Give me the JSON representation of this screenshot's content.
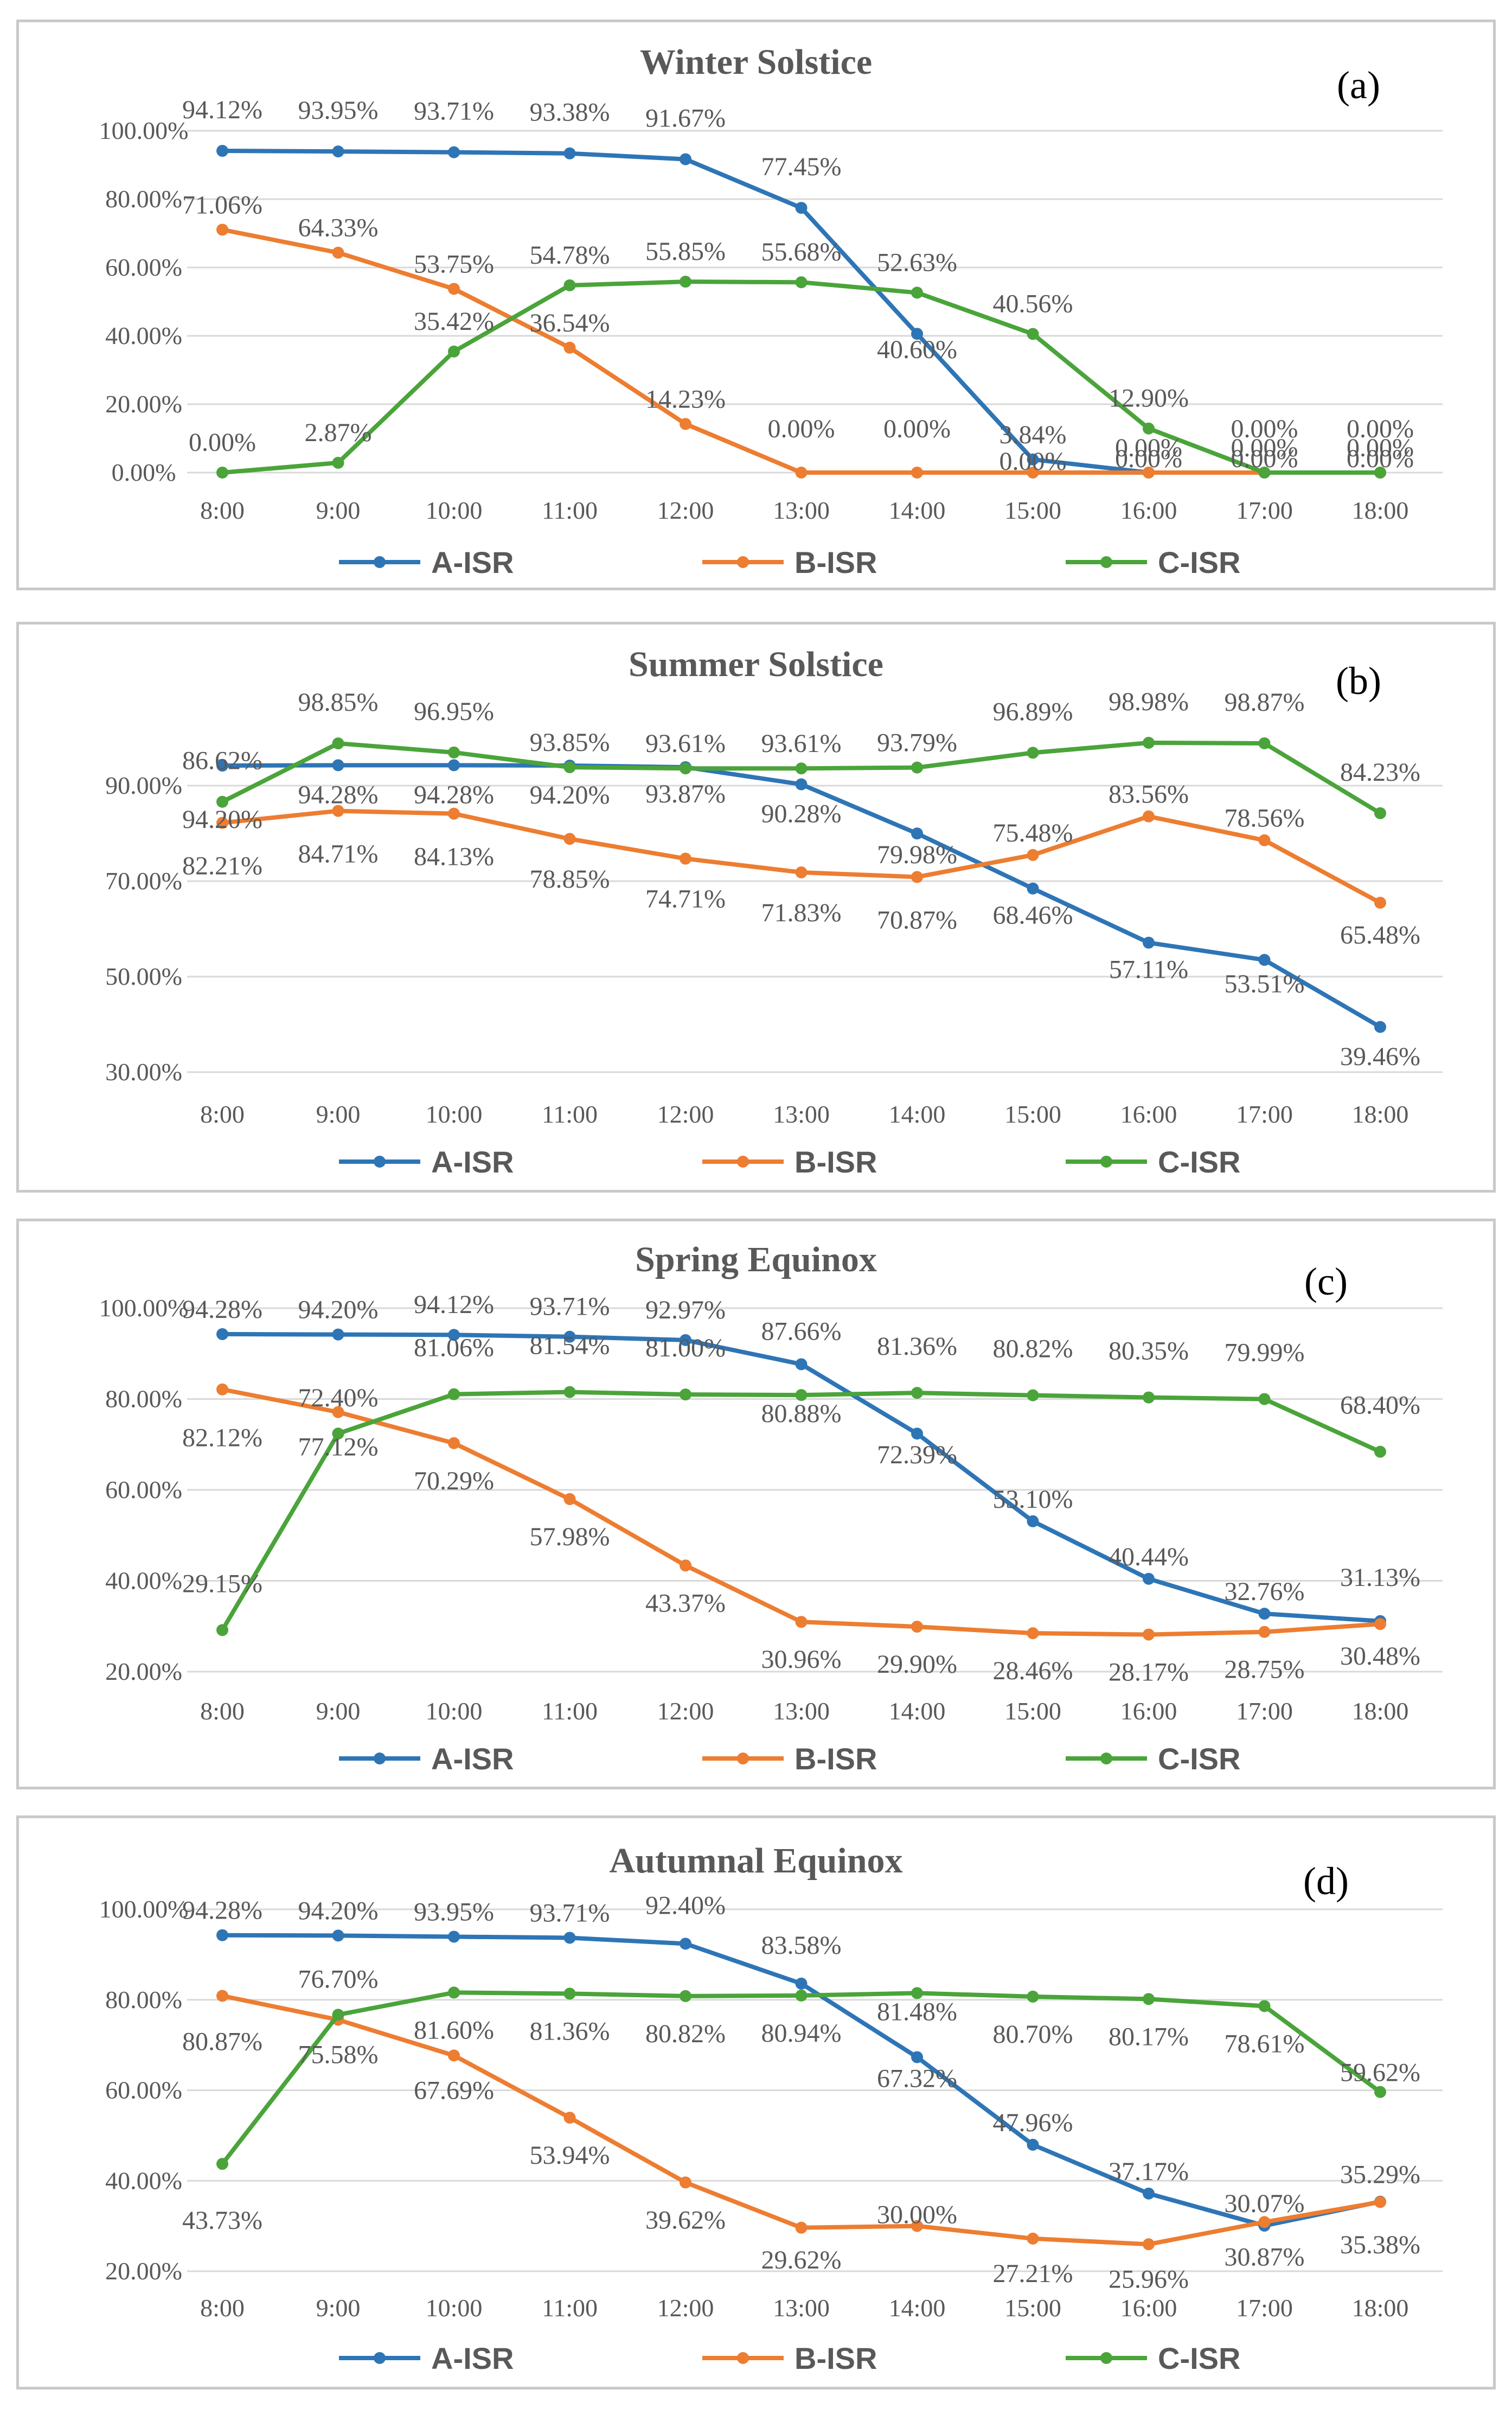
{
  "colors": {
    "A-ISR": "#2e75b6",
    "B-ISR": "#ed7d31",
    "C-ISR": "#4aa43a"
  },
  "chart_data": [
    {
      "id": "a",
      "type": "line",
      "title": "Winter  Solstice",
      "panel_label": "(a)",
      "categories": [
        "8:00",
        "9:00",
        "10:00",
        "11:00",
        "12:00",
        "13:00",
        "14:00",
        "15:00",
        "16:00",
        "17:00",
        "18:00"
      ],
      "ylim": [
        0,
        100
      ],
      "yticks": [
        0,
        20,
        40,
        60,
        80,
        100
      ],
      "ytick_labels": [
        "0.00%",
        "20.00%",
        "40.00%",
        "60.00%",
        "80.00%",
        "100.00%"
      ],
      "series": [
        {
          "name": "A-ISR",
          "values": [
            94.12,
            93.95,
            93.71,
            93.38,
            91.67,
            77.45,
            40.6,
            3.84,
            0,
            0,
            0
          ],
          "labels": [
            "94.12%",
            "93.95%",
            "93.71%",
            "93.38%",
            "91.67%",
            "77.45%",
            "40.60%",
            "3.84%",
            "0.00%",
            "0.00%",
            "0.00%"
          ]
        },
        {
          "name": "B-ISR",
          "values": [
            71.06,
            64.33,
            53.75,
            36.54,
            14.23,
            0,
            0,
            0,
            0,
            0,
            0
          ],
          "labels": [
            "71.06%",
            "64.33%",
            "53.75%",
            "36.54%",
            "14.23%",
            "0.00%",
            "0.00%",
            "0.00%",
            "0.00%",
            "0.00%",
            "0.00%"
          ]
        },
        {
          "name": "C-ISR",
          "values": [
            0,
            2.87,
            35.42,
            54.78,
            55.85,
            55.68,
            52.63,
            40.56,
            12.9,
            0,
            0
          ],
          "labels": [
            "0.00%",
            "2.87%",
            "35.42%",
            "54.78%",
            "55.85%",
            "55.68%",
            "52.63%",
            "40.56%",
            "12.90%",
            "0.00%",
            "0.00%"
          ]
        }
      ]
    },
    {
      "id": "b",
      "type": "line",
      "title": "Summer Solstice",
      "panel_label": "(b)",
      "categories": [
        "8:00",
        "9:00",
        "10:00",
        "11:00",
        "12:00",
        "13:00",
        "14:00",
        "15:00",
        "16:00",
        "17:00",
        "18:00"
      ],
      "ylim": [
        30,
        105
      ],
      "yticks": [
        30,
        50,
        70,
        90
      ],
      "ytick_labels": [
        "30.00%",
        "50.00%",
        "70.00%",
        "90.00%"
      ],
      "series": [
        {
          "name": "A-ISR",
          "values": [
            94.2,
            94.28,
            94.28,
            94.2,
            93.87,
            90.28,
            79.98,
            68.46,
            57.11,
            53.51,
            39.46
          ],
          "labels": [
            "94.20%",
            "94.28%",
            "94.28%",
            "94.20%",
            "93.87%",
            "90.28%",
            "79.98%",
            "68.46%",
            "57.11%",
            "53.51%",
            "39.46%"
          ]
        },
        {
          "name": "B-ISR",
          "values": [
            82.21,
            84.71,
            84.13,
            78.85,
            74.71,
            71.83,
            70.87,
            75.48,
            83.56,
            78.56,
            65.48
          ],
          "labels": [
            "82.21%",
            "84.71%",
            "84.13%",
            "78.85%",
            "74.71%",
            "71.83%",
            "70.87%",
            "75.48%",
            "83.56%",
            "78.56%",
            "65.48%"
          ]
        },
        {
          "name": "C-ISR",
          "values": [
            86.62,
            98.85,
            96.95,
            93.85,
            93.61,
            93.61,
            93.79,
            96.89,
            98.98,
            98.87,
            84.23
          ],
          "labels": [
            "86.62%",
            "98.85%",
            "96.95%",
            "93.85%",
            "93.61%",
            "93.61%",
            "93.79%",
            "96.89%",
            "98.98%",
            "98.87%",
            "84.23%"
          ]
        }
      ]
    },
    {
      "id": "c",
      "type": "line",
      "title": "Spring Equinox",
      "panel_label": "(c)",
      "categories": [
        "8:00",
        "9:00",
        "10:00",
        "11:00",
        "12:00",
        "13:00",
        "14:00",
        "15:00",
        "16:00",
        "17:00",
        "18:00"
      ],
      "ylim": [
        20,
        100
      ],
      "yticks": [
        20,
        40,
        60,
        80,
        100
      ],
      "ytick_labels": [
        "20.00%",
        "40.00%",
        "60.00%",
        "80.00%",
        "100.00%"
      ],
      "series": [
        {
          "name": "A-ISR",
          "values": [
            94.28,
            94.2,
            94.12,
            93.71,
            92.97,
            87.66,
            72.39,
            53.1,
            40.44,
            32.76,
            31.13
          ],
          "labels": [
            "94.28%",
            "94.20%",
            "94.12%",
            "93.71%",
            "92.97%",
            "87.66%",
            "72.39%",
            "53.10%",
            "40.44%",
            "32.76%",
            "31.13%"
          ]
        },
        {
          "name": "B-ISR",
          "values": [
            82.12,
            77.12,
            70.29,
            57.98,
            43.37,
            30.96,
            29.9,
            28.46,
            28.17,
            28.75,
            30.48
          ],
          "labels": [
            "82.12%",
            "77.12%",
            "70.29%",
            "57.98%",
            "43.37%",
            "30.96%",
            "29.90%",
            "28.46%",
            "28.17%",
            "28.75%",
            "30.48%"
          ]
        },
        {
          "name": "C-ISR",
          "values": [
            29.15,
            72.4,
            81.06,
            81.54,
            81.0,
            80.88,
            81.36,
            80.82,
            80.35,
            79.99,
            68.4
          ],
          "labels": [
            "29.15%",
            "72.40%",
            "81.06%",
            "81.54%",
            "81.00%",
            "80.88%",
            "81.36%",
            "80.82%",
            "80.35%",
            "79.99%",
            "68.40%"
          ]
        }
      ]
    },
    {
      "id": "d",
      "type": "line",
      "title": "Autumnal Equinox",
      "panel_label": "(d)",
      "categories": [
        "8:00",
        "9:00",
        "10:00",
        "11:00",
        "12:00",
        "13:00",
        "14:00",
        "15:00",
        "16:00",
        "17:00",
        "18:00"
      ],
      "ylim": [
        20,
        100
      ],
      "yticks": [
        20,
        40,
        60,
        80,
        100
      ],
      "ytick_labels": [
        "20.00%",
        "40.00%",
        "60.00%",
        "80.00%",
        "100.00%"
      ],
      "series": [
        {
          "name": "A-ISR",
          "values": [
            94.28,
            94.2,
            93.95,
            93.71,
            92.4,
            83.58,
            67.32,
            47.96,
            37.17,
            30.07,
            35.38
          ],
          "labels": [
            "94.28%",
            "94.20%",
            "93.95%",
            "93.71%",
            "92.40%",
            "83.58%",
            "67.32%",
            "47.96%",
            "37.17%",
            "30.07%",
            "35.38%"
          ]
        },
        {
          "name": "B-ISR",
          "values": [
            80.87,
            75.58,
            67.69,
            53.94,
            39.62,
            29.62,
            30.0,
            27.21,
            25.96,
            30.87,
            35.29
          ],
          "labels": [
            "80.87%",
            "75.58%",
            "67.69%",
            "53.94%",
            "39.62%",
            "29.62%",
            "30.00%",
            "27.21%",
            "25.96%",
            "30.87%",
            "35.29%"
          ]
        },
        {
          "name": "C-ISR",
          "values": [
            43.73,
            76.7,
            81.6,
            81.36,
            80.82,
            80.94,
            81.48,
            80.7,
            80.17,
            78.61,
            59.62
          ],
          "labels": [
            "43.73%",
            "76.70%",
            "81.60%",
            "81.36%",
            "80.82%",
            "80.94%",
            "81.48%",
            "80.70%",
            "80.17%",
            "78.61%",
            "59.62%"
          ]
        }
      ]
    }
  ]
}
